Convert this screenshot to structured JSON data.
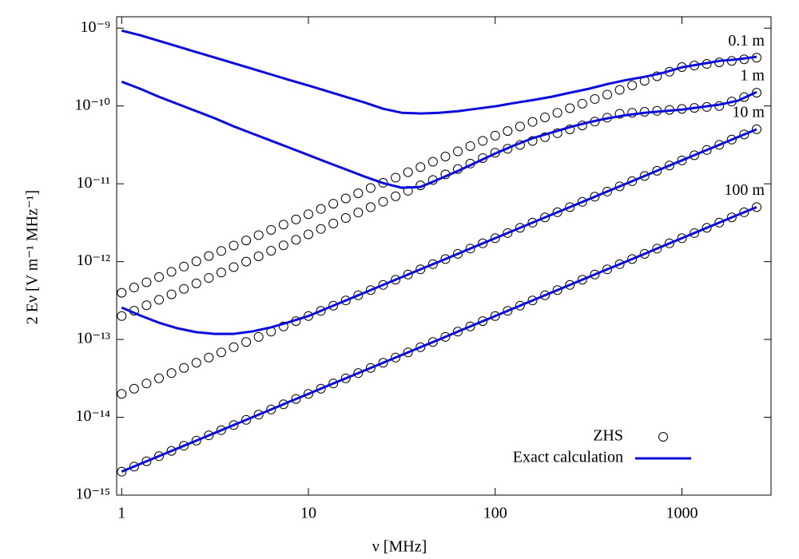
{
  "chart_data": {
    "type": "line",
    "x_label": "ν [MHz]",
    "y_label": "2 Eν [V m⁻¹ MHz⁻¹]",
    "log_x": true,
    "log_y": true,
    "xlim": [
      0.94,
      3000
    ],
    "ylim": [
      1e-15,
      1.4e-09
    ],
    "xticks": [
      1,
      10,
      100,
      1000
    ],
    "yticks": [
      {
        "value": 1e-15,
        "label": "10⁻¹⁵"
      },
      {
        "value": 1e-14,
        "label": "10⁻¹⁴"
      },
      {
        "value": 1e-13,
        "label": "10⁻¹³"
      },
      {
        "value": 1e-12,
        "label": "10⁻¹²"
      },
      {
        "value": 1e-11,
        "label": "10⁻¹¹"
      },
      {
        "value": 1e-10,
        "label": "10⁻¹⁰"
      },
      {
        "value": 1e-09,
        "label": "10⁻⁹"
      }
    ],
    "legend": "lower right",
    "series": [
      {
        "name": "ZHS",
        "marker": "circle",
        "color": "#000000",
        "x": [
          1,
          1.166,
          1.359,
          1.585,
          1.848,
          2.154,
          2.512,
          2.929,
          3.415,
          3.981,
          4.642,
          5.412,
          6.31,
          7.356,
          8.577,
          10,
          11.66,
          13.59,
          15.85,
          18.48,
          21.54,
          25.12,
          29.29,
          34.15,
          39.81,
          46.42,
          54.12,
          63.1,
          73.56,
          85.77,
          100,
          116.6,
          135.9,
          158.5,
          184.8,
          215.4,
          251.2,
          292.9,
          341.5,
          398.1,
          464.2,
          541.2,
          631,
          735.6,
          857.7,
          1000,
          1166,
          1359,
          1585,
          1848,
          2154,
          2512
        ],
        "curves": [
          {
            "label": "0.1 m",
            "values": [
              3.98e-13,
              4.65e-13,
              5.43e-13,
              6.34e-13,
              7.4e-13,
              8.64e-13,
              1.01e-12,
              1.18e-12,
              1.37e-12,
              1.61e-12,
              1.87e-12,
              2.19e-12,
              2.56e-12,
              2.99e-12,
              3.49e-12,
              4.07e-12,
              4.75e-12,
              5.55e-12,
              6.48e-12,
              7.56e-12,
              8.83e-12,
              1.03e-11,
              1.2e-11,
              1.41e-11,
              1.64e-11,
              1.92e-11,
              2.24e-11,
              2.61e-11,
              3.05e-11,
              3.56e-11,
              4.16e-11,
              4.76e-11,
              5.45e-11,
              6.24e-11,
              7.14e-11,
              8.18e-11,
              9.36e-11,
              1.07e-10,
              1.23e-10,
              1.4e-10,
              1.61e-10,
              1.84e-10,
              2.11e-10,
              2.41e-10,
              2.76e-10,
              3.16e-10,
              3.31e-10,
              3.47e-10,
              3.63e-10,
              3.8e-10,
              3.98e-10,
              4.17e-10
            ]
          },
          {
            "label": "1 m",
            "values": [
              2e-13,
              2.34e-13,
              2.75e-13,
              3.24e-13,
              3.8e-13,
              4.47e-13,
              5.25e-13,
              6.17e-13,
              7.24e-13,
              8.51e-13,
              1e-12,
              1.17e-12,
              1.38e-12,
              1.62e-12,
              1.91e-12,
              2.24e-12,
              2.63e-12,
              3.09e-12,
              3.63e-12,
              4.27e-12,
              5.01e-12,
              5.89e-12,
              6.92e-12,
              8.13e-12,
              9.55e-12,
              1.12e-11,
              1.32e-11,
              1.55e-11,
              1.82e-11,
              2.14e-11,
              2.51e-11,
              2.82e-11,
              3.16e-11,
              3.55e-11,
              3.98e-11,
              4.47e-11,
              5.01e-11,
              5.62e-11,
              6.31e-11,
              7.08e-11,
              7.94e-11,
              8.18e-11,
              8.41e-11,
              8.66e-11,
              8.91e-11,
              9.17e-11,
              9.44e-11,
              9.72e-11,
              1e-10,
              1.14e-10,
              1.3e-10,
              1.48e-10
            ]
          },
          {
            "label": "10 m",
            "values": [
              2e-14,
              2.33e-14,
              2.72e-14,
              3.17e-14,
              3.7e-14,
              4.31e-14,
              5.02e-14,
              5.86e-14,
              6.83e-14,
              7.96e-14,
              9.28e-14,
              1.08e-13,
              1.26e-13,
              1.47e-13,
              1.72e-13,
              2e-13,
              2.33e-13,
              2.72e-13,
              3.17e-13,
              3.7e-13,
              4.31e-13,
              5.02e-13,
              5.86e-13,
              6.83e-13,
              7.96e-13,
              9.28e-13,
              1.08e-12,
              1.26e-12,
              1.47e-12,
              1.72e-12,
              2e-12,
              2.33e-12,
              2.72e-12,
              3.17e-12,
              3.7e-12,
              4.31e-12,
              5.02e-12,
              5.86e-12,
              6.83e-12,
              7.96e-12,
              9.28e-12,
              1.08e-11,
              1.26e-11,
              1.47e-11,
              1.72e-11,
              2e-11,
              2.33e-11,
              2.72e-11,
              3.17e-11,
              3.7e-11,
              4.31e-11,
              5.02e-11
            ]
          },
          {
            "label": "100 m",
            "values": [
              2e-15,
              2.33e-15,
              2.72e-15,
              3.17e-15,
              3.7e-15,
              4.31e-15,
              5.02e-15,
              5.86e-15,
              6.83e-15,
              7.96e-15,
              9.28e-15,
              1.08e-14,
              1.26e-14,
              1.47e-14,
              1.72e-14,
              2e-14,
              2.33e-14,
              2.72e-14,
              3.17e-14,
              3.7e-14,
              4.31e-14,
              5.02e-14,
              5.86e-14,
              6.83e-14,
              7.96e-14,
              9.28e-14,
              1.08e-13,
              1.26e-13,
              1.47e-13,
              1.72e-13,
              2e-13,
              2.33e-13,
              2.72e-13,
              3.17e-13,
              3.7e-13,
              4.31e-13,
              5.02e-13,
              5.86e-13,
              6.83e-13,
              7.96e-13,
              9.28e-13,
              1.08e-12,
              1.26e-12,
              1.47e-12,
              1.72e-12,
              2e-12,
              2.33e-12,
              2.72e-12,
              3.17e-12,
              3.7e-12,
              4.31e-12,
              5.02e-12
            ]
          }
        ]
      },
      {
        "name": "Exact calculation",
        "marker": "line",
        "color": "#0a0adf",
        "x": [
          1,
          1.259,
          1.585,
          1.995,
          2.512,
          3.162,
          3.981,
          5.012,
          6.31,
          7.943,
          10,
          12.59,
          15.85,
          19.95,
          25.12,
          31.62,
          39.81,
          50.12,
          63.1,
          79.43,
          100,
          125.9,
          158.5,
          199.5,
          251.2,
          316.2,
          398.1,
          501.2,
          631,
          794.3,
          1000,
          1259,
          1585,
          1995,
          2512
        ],
        "curves": [
          {
            "values": [
              9.31e-10,
              8.09e-10,
              6.86e-10,
              5.81e-10,
              4.92e-10,
              4.18e-10,
              3.54e-10,
              3e-10,
              2.54e-10,
              2.15e-10,
              1.83e-10,
              1.55e-10,
              1.31e-10,
              1.11e-10,
              9.21e-11,
              8.18e-11,
              8e-11,
              8.18e-11,
              8.57e-11,
              9.21e-11,
              9.89e-11,
              1.09e-10,
              1.19e-10,
              1.31e-10,
              1.48e-10,
              1.66e-10,
              1.91e-10,
              2.15e-10,
              2.37e-10,
              2.67e-10,
              3.14e-10,
              3.45e-10,
              3.79e-10,
              3.98e-10,
              4.28e-10
            ]
          },
          {
            "values": [
              2.05e-10,
              1.66e-10,
              1.31e-10,
              1.06e-10,
              8.57e-11,
              6.93e-11,
              5.47e-11,
              4.42e-11,
              3.58e-11,
              2.9e-11,
              2.34e-11,
              1.89e-11,
              1.53e-11,
              1.24e-11,
              1.02e-11,
              8.89e-12,
              9.1e-12,
              1.15e-11,
              1.46e-11,
              1.89e-11,
              2.45e-11,
              3.1e-11,
              3.85e-11,
              4.53e-11,
              5.35e-11,
              6.17e-11,
              6.93e-11,
              7.62e-11,
              8.18e-11,
              8.57e-11,
              8.99e-11,
              9.66e-11,
              1.04e-10,
              1.17e-10,
              1.51e-10
            ]
          },
          {
            "values": [
              2.57e-13,
              2.03e-13,
              1.64e-13,
              1.39e-13,
              1.24e-13,
              1.18e-13,
              1.18e-13,
              1.27e-13,
              1.43e-13,
              1.68e-13,
              2e-13,
              2.52e-13,
              3.17e-13,
              3.99e-13,
              5.02e-13,
              6.32e-13,
              7.96e-13,
              1e-12,
              1.26e-12,
              1.59e-12,
              2e-12,
              2.52e-12,
              3.17e-12,
              3.99e-12,
              5.02e-12,
              6.32e-12,
              7.96e-12,
              1e-11,
              1.26e-11,
              1.59e-11,
              2e-11,
              2.52e-11,
              3.17e-11,
              3.99e-11,
              5.02e-11
            ]
          },
          {
            "values": [
              2e-15,
              2.52e-15,
              3.17e-15,
              3.99e-15,
              5.02e-15,
              6.32e-15,
              7.96e-15,
              1e-14,
              1.26e-14,
              1.59e-14,
              2e-14,
              2.52e-14,
              3.17e-14,
              3.99e-14,
              5.02e-14,
              6.32e-14,
              7.96e-14,
              1e-13,
              1.26e-13,
              1.59e-13,
              2e-13,
              2.52e-13,
              3.17e-13,
              3.99e-13,
              5.02e-13,
              6.32e-13,
              7.96e-13,
              1e-12,
              1.26e-12,
              1.59e-12,
              2e-12,
              2.52e-12,
              3.17e-12,
              3.99e-12,
              5.02e-12
            ]
          }
        ]
      }
    ]
  }
}
